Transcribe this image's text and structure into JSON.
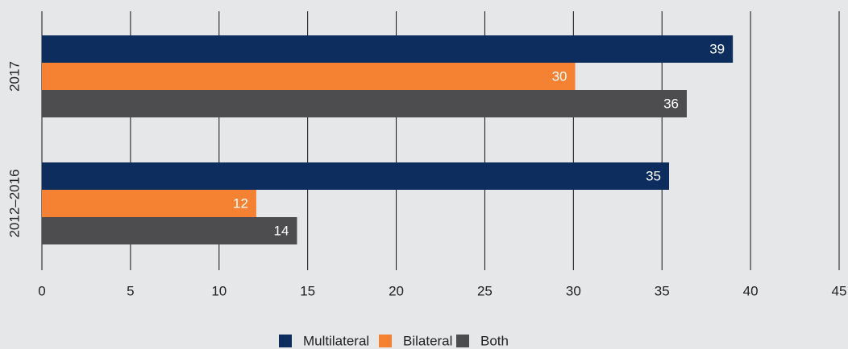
{
  "chart_data": {
    "type": "bar",
    "orientation": "horizontal",
    "categories": [
      "2017",
      "2012–2016"
    ],
    "series": [
      {
        "name": "Multilateral",
        "color": "#0c2d5e",
        "values": [
          39,
          35.4
        ],
        "value_labels": [
          "39",
          "35"
        ]
      },
      {
        "name": "Bilateral",
        "color": "#f58233",
        "values": [
          30.1,
          12.1
        ],
        "value_labels": [
          "30",
          "12"
        ]
      },
      {
        "name": "Both",
        "color": "#4d4d4f",
        "values": [
          36.4,
          14.4
        ],
        "value_labels": [
          "36",
          "14"
        ]
      }
    ],
    "xlim": [
      0,
      45
    ],
    "xticks": [
      0,
      5,
      10,
      15,
      20,
      25,
      30,
      35,
      40,
      45
    ],
    "grid": true,
    "legend": "bottom"
  }
}
